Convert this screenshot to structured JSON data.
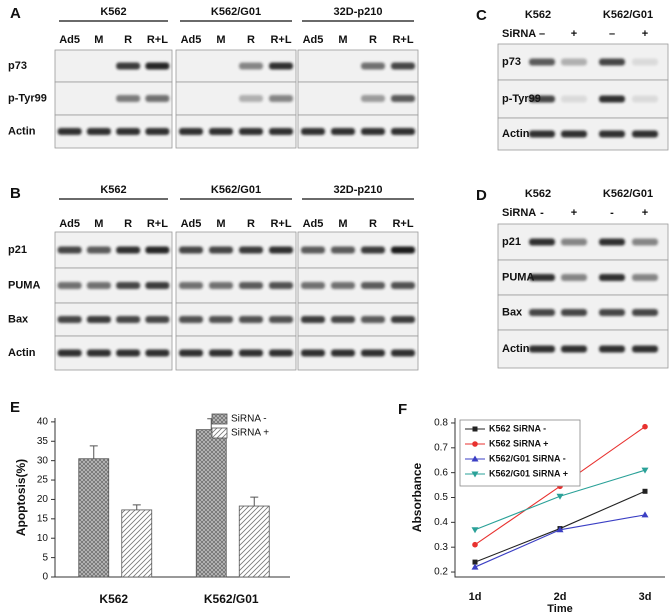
{
  "panels": [
    {
      "label": "A",
      "groups": [
        "K562",
        "K562/G01",
        "32D-p210"
      ],
      "lanes": [
        "Ad5",
        "M",
        "R",
        "R+L"
      ],
      "rows": [
        "p73",
        "p-Tyr99",
        "Actin"
      ]
    },
    {
      "label": "B",
      "groups": [
        "K562",
        "K562/G01",
        "32D-p210"
      ],
      "lanes": [
        "Ad5",
        "M",
        "R",
        "R+L"
      ],
      "rows": [
        "p21",
        "PUMA",
        "Bax",
        "Actin"
      ]
    },
    {
      "label": "C",
      "groups": [
        "K562",
        "K562/G01"
      ],
      "treatment": "SiRNA",
      "lanes": [
        "–",
        "+",
        "–",
        "+"
      ],
      "rows": [
        "p73",
        "p-Tyr99",
        "Actin"
      ]
    },
    {
      "label": "D",
      "groups": [
        "K562",
        "K562/G01"
      ],
      "treatment": "SiRNA",
      "lanes": [
        "-",
        "+",
        "-",
        "+"
      ],
      "rows": [
        "p21",
        "PUMA",
        "Bax",
        "Actin"
      ]
    }
  ],
  "chart_data": [
    {
      "panel_label": "E",
      "type": "bar",
      "ylabel": "Apoptosis(%)",
      "categories": [
        "K562",
        "K562/G01"
      ],
      "series": [
        {
          "name": "SiRNA -",
          "values": [
            30.5,
            38
          ],
          "errors": [
            3.3,
            2.8
          ]
        },
        {
          "name": "SiRNA +",
          "values": [
            17.3,
            18.3
          ],
          "errors": [
            1.3,
            2.3
          ]
        }
      ],
      "ylim": [
        0,
        41
      ],
      "yticks": [
        0,
        5,
        10,
        15,
        20,
        25,
        30,
        35,
        40
      ]
    },
    {
      "panel_label": "F",
      "type": "line",
      "xlabel": "Time",
      "ylabel": "Absorbance",
      "categories": [
        "1d",
        "2d",
        "3d"
      ],
      "series": [
        {
          "name": "K562 SiRNA -",
          "color": "#222222",
          "marker": "square",
          "values": [
            0.24,
            0.375,
            0.525
          ]
        },
        {
          "name": "K562 SiRNA +",
          "color": "#e8312f",
          "marker": "circle",
          "values": [
            0.31,
            0.545,
            0.785
          ]
        },
        {
          "name": "K562/G01 SiRNA -",
          "color": "#3b3fc4",
          "marker": "triangle-up",
          "values": [
            0.22,
            0.37,
            0.43
          ]
        },
        {
          "name": "K562/G01 SiRNA +",
          "color": "#2aa198",
          "marker": "triangle-down",
          "values": [
            0.37,
            0.505,
            0.61
          ]
        }
      ],
      "ylim": [
        0.18,
        0.82
      ],
      "yticks": [
        0.2,
        0.3,
        0.4,
        0.5,
        0.6,
        0.7,
        0.8
      ]
    }
  ]
}
